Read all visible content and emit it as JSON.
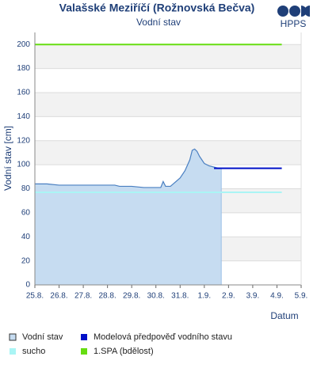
{
  "chart_data": {
    "type": "line",
    "title": "Valašské Meziříčí (Rožnovská Bečva)",
    "subtitle": "Vodní stav",
    "logo": "HPPS",
    "y_label": "Vodní stav [cm]",
    "x_label": "Datum",
    "xlim": [
      0,
      11
    ],
    "xticks": [
      {
        "value": 0,
        "label": "25.8."
      },
      {
        "value": 1,
        "label": "26.8."
      },
      {
        "value": 2,
        "label": "27.8."
      },
      {
        "value": 3,
        "label": "28.8."
      },
      {
        "value": 4,
        "label": "29.8."
      },
      {
        "value": 5,
        "label": "30.8."
      },
      {
        "value": 6,
        "label": "31.8."
      },
      {
        "value": 7,
        "label": "1.9."
      },
      {
        "value": 8,
        "label": "2.9."
      },
      {
        "value": 9,
        "label": "3.9."
      },
      {
        "value": 10,
        "label": "4.9."
      },
      {
        "value": 11,
        "label": "5.9."
      }
    ],
    "ylim": [
      0,
      210
    ],
    "yticks": [
      0,
      20,
      40,
      60,
      80,
      100,
      120,
      140,
      160,
      180,
      200
    ],
    "grid": true,
    "legend": "bottom",
    "series": [
      {
        "name": "Vodní stav",
        "color": "#4a7fc1",
        "fill": "#c6dcf1",
        "area": true,
        "x": [
          0,
          0.5,
          1,
          1.5,
          2,
          2.5,
          3,
          3.3,
          3.5,
          4,
          4.5,
          5,
          5.2,
          5.3,
          5.4,
          5.6,
          6,
          6.2,
          6.4,
          6.5,
          6.6,
          6.7,
          6.8,
          7,
          7.2,
          7.4,
          7.6,
          7.7
        ],
        "values": [
          84,
          84,
          83,
          83,
          83,
          83,
          83,
          83,
          82,
          82,
          81,
          81,
          81,
          86,
          82,
          82,
          89,
          95,
          104,
          112,
          113,
          111,
          107,
          101,
          99,
          98,
          97,
          97
        ]
      },
      {
        "name": "Modelová předpověď vodního stavu",
        "color": "#0010c8",
        "x": [
          7.4,
          10.2
        ],
        "values": [
          97,
          97
        ]
      },
      {
        "name": "sucho",
        "color": "#aaf5f5",
        "x": [
          0,
          10.2
        ],
        "values": [
          77,
          77
        ]
      },
      {
        "name": "1.SPA (bdělost)",
        "color": "#66dd11",
        "x": [
          0,
          10.2
        ],
        "values": [
          200,
          200
        ]
      }
    ]
  }
}
